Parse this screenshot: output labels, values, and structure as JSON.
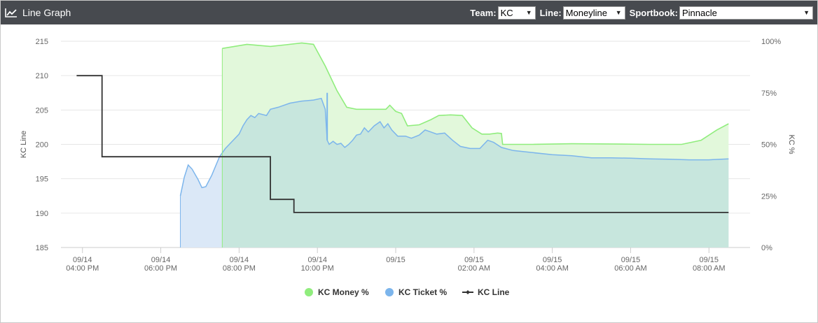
{
  "header": {
    "title": "Line Graph",
    "icon": "line-chart-icon",
    "team_label": "Team:",
    "team_value": "KC",
    "line_label": "Line:",
    "line_value": "Moneyline",
    "sportbook_label": "Sportbook:",
    "sportbook_value": "Pinnacle"
  },
  "chart_data": {
    "type": "line",
    "title": "",
    "y_left": {
      "label": "KC Line",
      "min": 185,
      "max": 215,
      "ticks": [
        185,
        190,
        195,
        200,
        205,
        210,
        215
      ]
    },
    "y_right": {
      "label": "KC %",
      "min": 0,
      "max": 100,
      "ticks": [
        "0%",
        "25%",
        "50%",
        "75%",
        "100%"
      ]
    },
    "x_axis": {
      "ticks": [
        {
          "t": 16,
          "label": [
            "09/14",
            "04:00 PM"
          ]
        },
        {
          "t": 18,
          "label": [
            "09/14",
            "06:00 PM"
          ]
        },
        {
          "t": 20,
          "label": [
            "09/14",
            "08:00 PM"
          ]
        },
        {
          "t": 22,
          "label": [
            "09/14",
            "10:00 PM"
          ]
        },
        {
          "t": 24,
          "label": [
            "09/15",
            ""
          ]
        },
        {
          "t": 26,
          "label": [
            "09/15",
            "02:00 AM"
          ]
        },
        {
          "t": 28,
          "label": [
            "09/15",
            "04:00 AM"
          ]
        },
        {
          "t": 30,
          "label": [
            "09/15",
            "06:00 AM"
          ]
        },
        {
          "t": 32,
          "label": [
            "09/15",
            "08:00 AM"
          ]
        }
      ]
    },
    "legend": {
      "placement": "bottom"
    },
    "colors": {
      "money": "#90ed7d",
      "money_fill": "#e2f8db",
      "ticket": "#7cb5ec",
      "ticket_fill": "#dbe8f7",
      "overlap_fill": "#c7e6dd",
      "line": "#333333"
    },
    "series": [
      {
        "name": "KC Money %",
        "axis": "right",
        "type": "area",
        "points": [
          [
            19.57,
            96.5
          ],
          [
            20.2,
            98.5
          ],
          [
            20.8,
            97.5
          ],
          [
            21.2,
            98.3
          ],
          [
            21.6,
            99.2
          ],
          [
            21.9,
            98.5
          ],
          [
            22.2,
            88
          ],
          [
            22.5,
            76
          ],
          [
            22.75,
            68
          ],
          [
            23.0,
            67
          ],
          [
            23.4,
            67
          ],
          [
            23.75,
            67
          ],
          [
            23.85,
            69
          ],
          [
            24.0,
            66
          ],
          [
            24.15,
            65
          ],
          [
            24.3,
            59
          ],
          [
            24.6,
            59.5
          ],
          [
            24.9,
            62
          ],
          [
            25.1,
            64
          ],
          [
            25.4,
            64.3
          ],
          [
            25.7,
            64
          ],
          [
            25.95,
            58
          ],
          [
            26.2,
            55
          ],
          [
            26.4,
            55
          ],
          [
            26.6,
            55.5
          ],
          [
            26.7,
            55.3
          ],
          [
            26.73,
            50
          ],
          [
            27.5,
            50
          ],
          [
            28.5,
            50.3
          ],
          [
            29.5,
            50.2
          ],
          [
            30.5,
            50
          ],
          [
            31.3,
            50
          ],
          [
            31.8,
            52
          ],
          [
            32.2,
            57
          ],
          [
            32.5,
            60
          ]
        ]
      },
      {
        "name": "KC Ticket %",
        "axis": "right",
        "type": "area",
        "points": [
          [
            18.5,
            25
          ],
          [
            18.6,
            34
          ],
          [
            18.7,
            40
          ],
          [
            18.8,
            38
          ],
          [
            18.95,
            33
          ],
          [
            19.05,
            29
          ],
          [
            19.15,
            29.5
          ],
          [
            19.3,
            35
          ],
          [
            19.5,
            44
          ],
          [
            19.65,
            48
          ],
          [
            19.85,
            52
          ],
          [
            20.0,
            55
          ],
          [
            20.1,
            59
          ],
          [
            20.2,
            62
          ],
          [
            20.3,
            64
          ],
          [
            20.4,
            63
          ],
          [
            20.5,
            65
          ],
          [
            20.7,
            64
          ],
          [
            20.8,
            67
          ],
          [
            21.0,
            68
          ],
          [
            21.3,
            70
          ],
          [
            21.6,
            71
          ],
          [
            21.9,
            71.5
          ],
          [
            22.1,
            72.3
          ],
          [
            22.2,
            67
          ],
          [
            22.25,
            52
          ],
          [
            22.3,
            50
          ],
          [
            22.4,
            51.5
          ],
          [
            22.5,
            50
          ],
          [
            22.6,
            50.5
          ],
          [
            22.7,
            48.5
          ],
          [
            22.8,
            50
          ],
          [
            22.9,
            52
          ],
          [
            23.0,
            54.5
          ],
          [
            23.1,
            55
          ],
          [
            23.2,
            58
          ],
          [
            23.3,
            56
          ],
          [
            23.45,
            59
          ],
          [
            23.6,
            61
          ],
          [
            23.7,
            58
          ],
          [
            23.8,
            60
          ],
          [
            23.9,
            57
          ],
          [
            24.05,
            54
          ],
          [
            24.25,
            54
          ],
          [
            24.4,
            53
          ],
          [
            24.6,
            54.5
          ],
          [
            24.75,
            57
          ],
          [
            24.9,
            56
          ],
          [
            25.05,
            55
          ],
          [
            25.25,
            55.5
          ],
          [
            25.45,
            52
          ],
          [
            25.65,
            49
          ],
          [
            25.9,
            48
          ],
          [
            26.15,
            48
          ],
          [
            26.35,
            52
          ],
          [
            26.5,
            51
          ],
          [
            26.7,
            48.5
          ],
          [
            27.0,
            47
          ],
          [
            27.5,
            46
          ],
          [
            28.0,
            45
          ],
          [
            28.5,
            44.5
          ],
          [
            29.0,
            43.5
          ],
          [
            29.5,
            43.5
          ],
          [
            30.0,
            43.3
          ],
          [
            30.5,
            43
          ],
          [
            31.0,
            42.8
          ],
          [
            31.5,
            42.5
          ],
          [
            32.0,
            42.5
          ],
          [
            32.5,
            43
          ]
        ]
      },
      {
        "name": "KC Line",
        "axis": "left",
        "type": "step",
        "points": [
          [
            15.85,
            210
          ],
          [
            16.5,
            210
          ],
          [
            16.5,
            198.2
          ],
          [
            20.8,
            198.2
          ],
          [
            20.8,
            192
          ],
          [
            21.4,
            192
          ],
          [
            21.4,
            190.1
          ],
          [
            32.5,
            190.1
          ]
        ]
      }
    ]
  }
}
